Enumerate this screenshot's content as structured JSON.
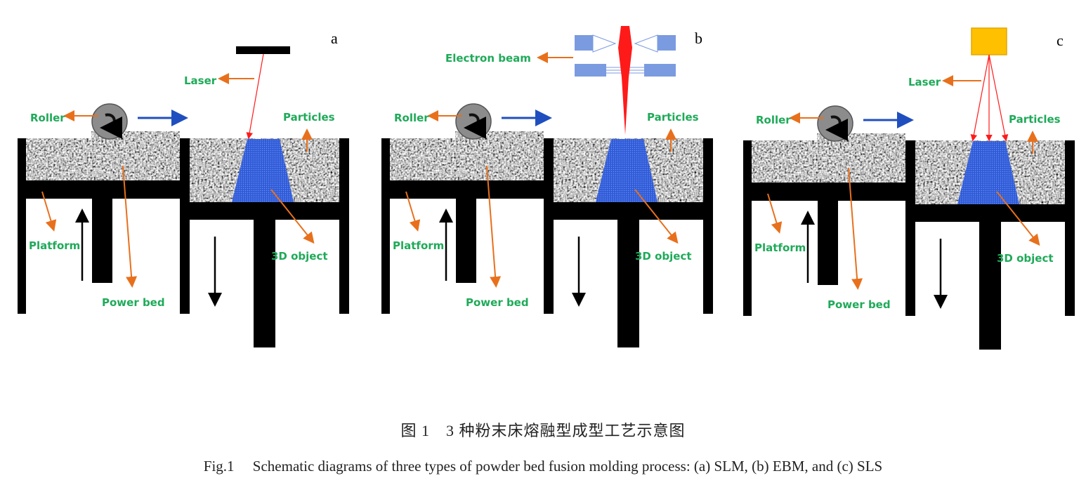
{
  "panels": [
    {
      "letter": "a",
      "source": "laser-bar",
      "labels": {
        "source": "Laser",
        "roller": "Roller",
        "particles": "Particles",
        "platform": "Platform",
        "powder_bed": "Power bed",
        "object": "3D object"
      }
    },
    {
      "letter": "b",
      "source": "electron-gun",
      "labels": {
        "source": "Electron beam",
        "roller": "Roller",
        "particles": "Particles",
        "platform": "Platform",
        "powder_bed": "Power bed",
        "object": "3D object"
      }
    },
    {
      "letter": "c",
      "source": "laser-box",
      "labels": {
        "source": "Laser",
        "roller": "Roller",
        "particles": "Particles",
        "platform": "Platform",
        "powder_bed": "Power bed",
        "object": "3D object"
      }
    }
  ],
  "caption": {
    "chinese": "图 1　3 种粉末床熔融型成型工艺示意图",
    "english": "Fig.1　 Schematic diagrams of three types of powder bed fusion molding process: (a) SLM, (b) EBM, and (c) SLS"
  },
  "colors": {
    "label": "#1faa59",
    "pointer_arrow": "#e8701c",
    "roller_direction": "#1f4fbf",
    "object": "#2f5bd8",
    "beam": "#ff1a1a",
    "electron_gun": "#7b9be0",
    "laser_box": "#ffc000"
  }
}
